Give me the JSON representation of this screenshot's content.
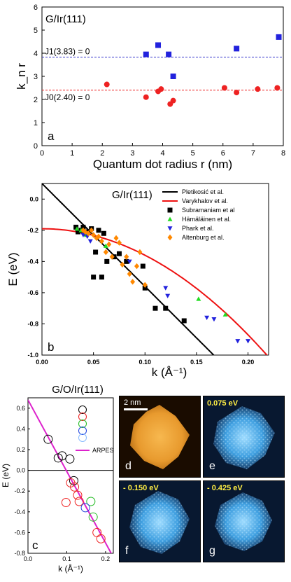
{
  "chart_data": [
    {
      "id": "a",
      "type": "scatter",
      "title": "G/Ir(111)",
      "panel_label": "a",
      "xlabel": "Quantum dot radius r (nm)",
      "ylabel": "k_n r",
      "xlim": [
        0,
        8
      ],
      "ylim": [
        0,
        6
      ],
      "xticks": [
        0,
        1,
        2,
        3,
        4,
        5,
        6,
        7,
        8
      ],
      "yticks": [
        0,
        1,
        2,
        3,
        4,
        5,
        6
      ],
      "reference_lines": [
        {
          "label": "J1(3.83) = 0",
          "y": 3.83,
          "color": "#3333cc"
        },
        {
          "label": "J0(2.40) = 0",
          "y": 2.4,
          "color": "#ee2222"
        }
      ],
      "series": [
        {
          "marker": "square",
          "color": "#2222dd",
          "x": [
            3.45,
            3.85,
            4.2,
            4.35,
            6.45,
            7.85
          ],
          "y": [
            3.95,
            4.35,
            3.95,
            3.0,
            4.2,
            4.7
          ]
        },
        {
          "marker": "circle",
          "color": "#ee2222",
          "x": [
            2.15,
            3.45,
            3.85,
            3.95,
            4.25,
            4.35,
            6.05,
            6.45,
            7.15,
            7.8
          ],
          "y": [
            2.65,
            2.1,
            2.35,
            2.45,
            1.8,
            1.95,
            2.5,
            2.3,
            2.45,
            2.5
          ]
        }
      ]
    },
    {
      "id": "b",
      "type": "scatter",
      "title": "G/Ir(111)",
      "panel_label": "b",
      "xlabel": "k (Å⁻¹)",
      "ylabel": "E (eV)",
      "xlim": [
        0,
        0.22
      ],
      "ylim": [
        -1.0,
        0.1
      ],
      "xticks": [
        0.0,
        0.05,
        0.1,
        0.15,
        0.2
      ],
      "xtick_labels": [
        "0.00",
        "0.05",
        "0.10",
        "0.15",
        "0.20"
      ],
      "yticks": [
        0.0,
        -0.2,
        -0.4,
        -0.6,
        -0.8,
        -1.0
      ],
      "ytick_labels": [
        "0.0",
        "-0.2",
        "-0.4",
        "-0.6",
        "-0.8",
        "-1.0"
      ],
      "legend_position": "top-right",
      "lines": [
        {
          "name": "Pletikosić et al.",
          "color": "#000000",
          "kind": "linear",
          "intercept": 0.1,
          "slope": -6.6
        },
        {
          "name": "Varykhalov et al.",
          "color": "#ee1111",
          "kind": "quadratic",
          "intercept": -0.19,
          "curv": -17.0
        }
      ],
      "series": [
        {
          "name": "Subramaniam et al",
          "marker": "square",
          "color": "#000000",
          "x": [
            0.033,
            0.035,
            0.038,
            0.04,
            0.042,
            0.045,
            0.048,
            0.05,
            0.052,
            0.055,
            0.058,
            0.06,
            0.063,
            0.07,
            0.075,
            0.082,
            0.098,
            0.1,
            0.11,
            0.12,
            0.138
          ],
          "y": [
            -0.18,
            -0.21,
            -0.2,
            -0.18,
            -0.22,
            -0.21,
            -0.19,
            -0.5,
            -0.34,
            -0.2,
            -0.5,
            -0.22,
            -0.4,
            -0.37,
            -0.35,
            -0.4,
            -0.43,
            -0.57,
            -0.7,
            -0.7,
            -0.78
          ]
        },
        {
          "name": "Hämäläinen et al.",
          "marker": "triangle-up",
          "color": "#22dd22",
          "x": [
            0.034,
            0.038,
            0.043,
            0.062,
            0.152,
            0.178
          ],
          "y": [
            -0.19,
            -0.2,
            -0.23,
            -0.3,
            -0.64,
            -0.74
          ]
        },
        {
          "name": "Phark et al.",
          "marker": "triangle-down",
          "color": "#2222dd",
          "x": [
            0.04,
            0.044,
            0.047,
            0.085,
            0.12,
            0.122,
            0.16,
            0.167,
            0.19,
            0.2
          ],
          "y": [
            -0.23,
            -0.24,
            -0.27,
            -0.4,
            -0.57,
            -0.62,
            -0.76,
            -0.77,
            -0.91,
            -0.91
          ]
        },
        {
          "name": "Altenburg et al.",
          "marker": "diamond",
          "color": "#ff8800",
          "x": [
            0.04,
            0.042,
            0.045,
            0.048,
            0.05,
            0.053,
            0.055,
            0.058,
            0.062,
            0.065,
            0.068,
            0.072,
            0.075,
            0.078,
            0.082,
            0.085,
            0.088,
            0.092,
            0.095,
            0.1
          ],
          "y": [
            -0.2,
            -0.21,
            -0.22,
            -0.2,
            -0.23,
            -0.25,
            -0.24,
            -0.27,
            -0.34,
            -0.29,
            -0.37,
            -0.25,
            -0.28,
            -0.42,
            -0.37,
            -0.48,
            -0.53,
            -0.43,
            -0.34,
            -0.55
          ]
        }
      ]
    },
    {
      "id": "c",
      "type": "scatter",
      "title": "G/O/Ir(111)",
      "panel_label": "c",
      "xlabel": "k (Å⁻¹)",
      "ylabel": "E (eV)",
      "xlim": [
        0,
        0.22
      ],
      "ylim": [
        -0.8,
        0.7
      ],
      "xticks": [
        0.0,
        0.1,
        0.2
      ],
      "xtick_labels": [
        "0.0",
        "0.1",
        "0.2"
      ],
      "yticks": [
        0.6,
        0.4,
        0.2,
        0.0,
        -0.2,
        -0.4,
        -0.6,
        -0.8
      ],
      "ytick_labels": [
        "0.6",
        "0.4",
        "0.2",
        "0.0",
        "-0.2",
        "-0.4",
        "-0.6",
        "-0.8"
      ],
      "lines": [
        {
          "name": "ARPES",
          "color": "#dd22cc",
          "kind": "linear",
          "intercept": 0.68,
          "slope": -6.9
        }
      ],
      "series": [
        {
          "marker": "open-circle",
          "color": "#000000",
          "x": [
            0.052,
            0.078,
            0.088,
            0.108,
            0.118
          ],
          "y": [
            0.3,
            0.12,
            0.14,
            0.11,
            -0.1
          ]
        },
        {
          "marker": "open-circle",
          "color": "#ee2222",
          "x": [
            0.11,
            0.12,
            0.128,
            0.132,
            0.098,
            0.188,
            0.178
          ],
          "y": [
            -0.12,
            -0.16,
            -0.24,
            -0.3,
            -0.31,
            -0.66,
            -0.6
          ]
        },
        {
          "marker": "open-circle",
          "color": "#22bb22",
          "x": [
            0.162,
            0.168
          ],
          "y": [
            -0.3,
            -0.45
          ]
        },
        {
          "marker": "open-circle",
          "color": "#2244dd",
          "x": [
            0.148
          ],
          "y": [
            -0.36
          ]
        }
      ],
      "legend_markers": [
        "#000000",
        "#ee2222",
        "#22bb22",
        "#2244dd",
        "#88bbff"
      ]
    }
  ],
  "images": [
    {
      "label": "d",
      "scale_bar": "2 nm",
      "energy": ""
    },
    {
      "label": "e",
      "scale_bar": "",
      "energy": "0.075 eV"
    },
    {
      "label": "f",
      "scale_bar": "",
      "energy": "- 0.150 eV"
    },
    {
      "label": "g",
      "scale_bar": "",
      "energy": "- 0.425 eV"
    }
  ],
  "colors": {
    "stm_orange": "#e8a23c",
    "stm_blue": "#4aa8e0",
    "stm_dark": "#0a1a33"
  }
}
